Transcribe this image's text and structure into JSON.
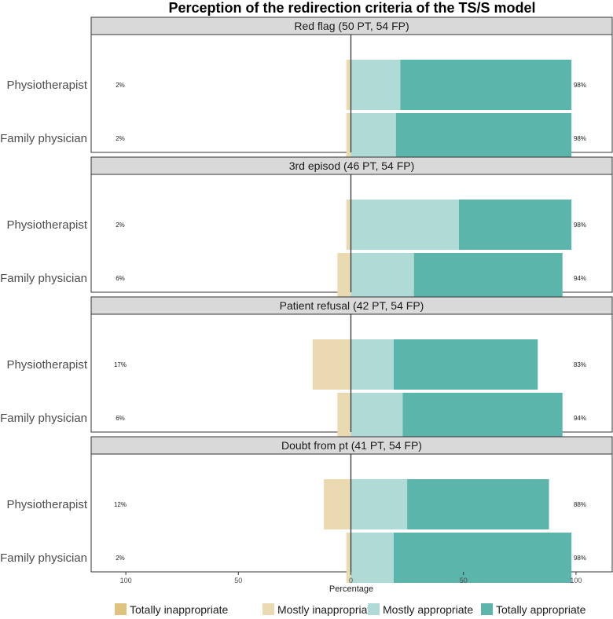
{
  "chart_data": {
    "type": "bar",
    "orientation": "horizontal",
    "stacking": "diverging",
    "title": "Perception of the redirection criteria of the TS/S model",
    "xlabel": "Percentage",
    "ylabel": "",
    "xlim": [
      -110,
      110
    ],
    "xticks": [
      -100,
      -50,
      0,
      50,
      100
    ],
    "xtick_labels": [
      "100",
      "50",
      "0",
      "50",
      "100"
    ],
    "legend": {
      "position": "bottom",
      "entries": [
        {
          "name": "Totally inappropriate",
          "color": "#dfc27d"
        },
        {
          "name": "Mostly inappropriate",
          "color": "#ebd9b2"
        },
        {
          "name": "Mostly appropriate",
          "color": "#b0dad6"
        },
        {
          "name": "Totally appropriate",
          "color": "#5bb5ab"
        }
      ]
    },
    "categories": [
      "Physiotherapist",
      "Family physician"
    ],
    "panels": [
      {
        "title": "Red flag (50 PT, 54 FP)",
        "rows": [
          {
            "category": "Physiotherapist",
            "totally_inappropriate": 0,
            "mostly_inappropriate": 2,
            "mostly_appropriate": 22,
            "totally_appropriate": 76,
            "left_label": "2%",
            "right_label": "98%"
          },
          {
            "category": "Family physician",
            "totally_inappropriate": 0,
            "mostly_inappropriate": 2,
            "mostly_appropriate": 20,
            "totally_appropriate": 78,
            "left_label": "2%",
            "right_label": "98%"
          }
        ]
      },
      {
        "title": "3rd episod (46 PT, 54 FP)",
        "rows": [
          {
            "category": "Physiotherapist",
            "totally_inappropriate": 0,
            "mostly_inappropriate": 2,
            "mostly_appropriate": 48,
            "totally_appropriate": 50,
            "left_label": "2%",
            "right_label": "98%"
          },
          {
            "category": "Family physician",
            "totally_inappropriate": 0,
            "mostly_inappropriate": 6,
            "mostly_appropriate": 28,
            "totally_appropriate": 66,
            "left_label": "6%",
            "right_label": "94%"
          }
        ]
      },
      {
        "title": "Patient refusal (42 PT, 54 FP)",
        "rows": [
          {
            "category": "Physiotherapist",
            "totally_inappropriate": 0,
            "mostly_inappropriate": 17,
            "mostly_appropriate": 19,
            "totally_appropriate": 64,
            "left_label": "17%",
            "right_label": "83%"
          },
          {
            "category": "Family physician",
            "totally_inappropriate": 0,
            "mostly_inappropriate": 6,
            "mostly_appropriate": 23,
            "totally_appropriate": 71,
            "left_label": "6%",
            "right_label": "94%"
          }
        ]
      },
      {
        "title": "Doubt from pt (41 PT, 54 FP)",
        "rows": [
          {
            "category": "Physiotherapist",
            "totally_inappropriate": 0,
            "mostly_inappropriate": 12,
            "mostly_appropriate": 25,
            "totally_appropriate": 63,
            "left_label": "12%",
            "right_label": "88%"
          },
          {
            "category": "Family physician",
            "totally_inappropriate": 0,
            "mostly_inappropriate": 2,
            "mostly_appropriate": 19,
            "totally_appropriate": 79,
            "left_label": "2%",
            "right_label": "98%"
          }
        ]
      }
    ]
  }
}
